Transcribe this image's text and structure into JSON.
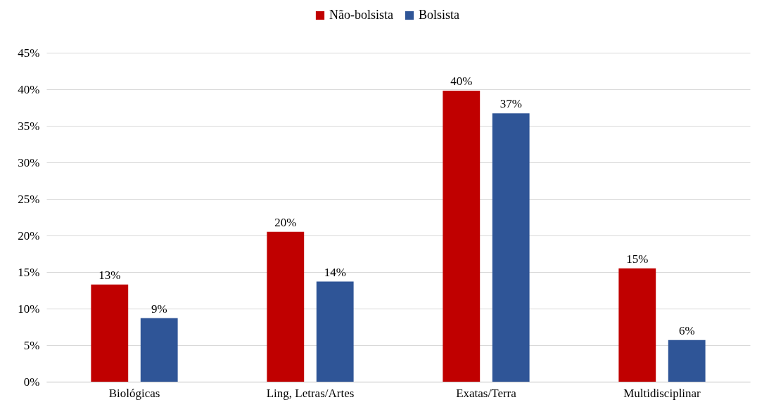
{
  "chart_data": {
    "type": "bar",
    "categories": [
      "Biológicas",
      "Ling, Letras/Artes",
      "Exatas/Terra",
      "Multidisciplinar"
    ],
    "series": [
      {
        "name": "Não-bolsista",
        "color": "#c00000",
        "values": [
          13.3,
          20.5,
          39.8,
          15.5
        ],
        "value_labels": [
          "13%",
          "20%",
          "40%",
          "15%"
        ]
      },
      {
        "name": "Bolsista",
        "color": "#2f5597",
        "values": [
          8.7,
          13.7,
          36.7,
          5.7
        ],
        "value_labels": [
          "9%",
          "14%",
          "37%",
          "6%"
        ]
      }
    ],
    "ylim": [
      0,
      45
    ],
    "yticks": [
      {
        "value": 0,
        "label": "0%"
      },
      {
        "value": 5,
        "label": "5%"
      },
      {
        "value": 10,
        "label": "10%"
      },
      {
        "value": 15,
        "label": "15%"
      },
      {
        "value": 20,
        "label": "20%"
      },
      {
        "value": 25,
        "label": "25%"
      },
      {
        "value": 30,
        "label": "30%"
      },
      {
        "value": 35,
        "label": "35%"
      },
      {
        "value": 40,
        "label": "40%"
      },
      {
        "value": 45,
        "label": "45%"
      }
    ],
    "grid": "y",
    "legend": "top"
  }
}
